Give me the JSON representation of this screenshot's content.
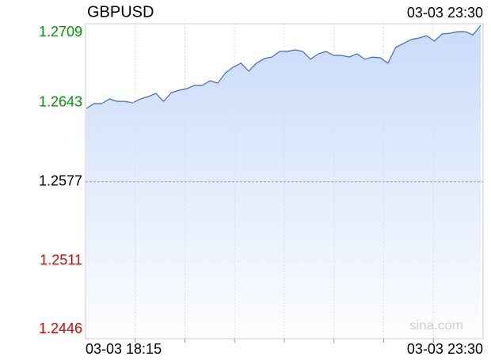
{
  "chart_data": {
    "type": "line",
    "title": "GBPUSD",
    "timestamp": "03-03 23:30",
    "x_start_label": "03-03 18:15",
    "x_end_label": "03-03 23:30",
    "watermark": "sina.com",
    "ylim": [
      1.2446,
      1.2709
    ],
    "yticks": [
      1.2446,
      1.2511,
      1.2577,
      1.2643,
      1.2709
    ],
    "ytick_colors": [
      "#e00000",
      "#e00000",
      "#000000",
      "#009900",
      "#009900"
    ],
    "color": "#3a6bc4",
    "fill_color": "#c9dbfa",
    "values": [
      1.26383,
      1.26423,
      1.26423,
      1.26462,
      1.26442,
      1.26442,
      1.26429,
      1.26462,
      1.26482,
      1.26508,
      1.26442,
      1.26515,
      1.26535,
      1.26548,
      1.26575,
      1.26575,
      1.26614,
      1.26594,
      1.2668,
      1.26727,
      1.2676,
      1.26694,
      1.2676,
      1.26799,
      1.26812,
      1.26859,
      1.26859,
      1.26872,
      1.26859,
      1.26793,
      1.26839,
      1.26859,
      1.26826,
      1.26826,
      1.26812,
      1.26839,
      1.26793,
      1.26812,
      1.26806,
      1.2676,
      1.26892,
      1.26925,
      1.26958,
      1.26971,
      1.26991,
      1.26945,
      1.27004,
      1.27011,
      1.27024,
      1.27024,
      1.26997,
      1.27077
    ]
  }
}
